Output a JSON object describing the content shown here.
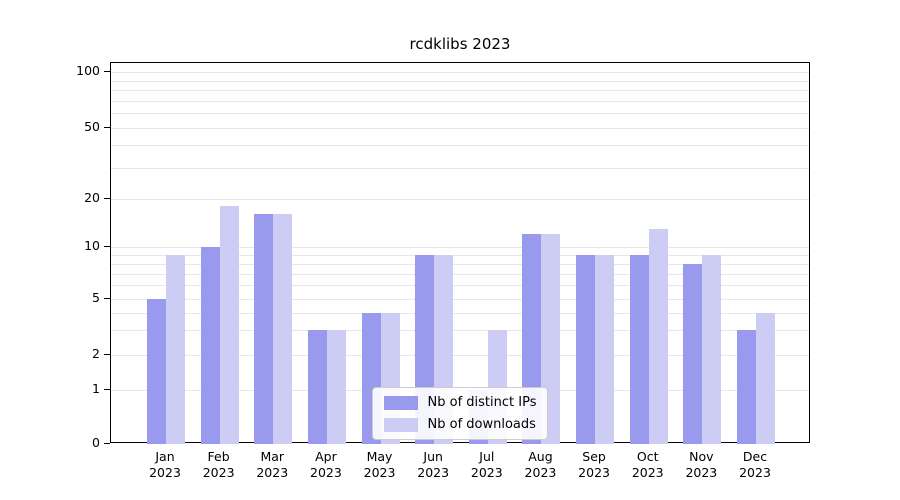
{
  "chart_data": {
    "type": "bar",
    "title": "rcdklibs 2023",
    "categories": [
      "Jan 2023",
      "Feb 2023",
      "Mar 2023",
      "Apr 2023",
      "May 2023",
      "Jun 2023",
      "Jul 2023",
      "Aug 2023",
      "Sep 2023",
      "Oct 2023",
      "Nov 2023",
      "Dec 2023"
    ],
    "series": [
      {
        "name": "Nb of distinct IPs",
        "color": "#9999ee",
        "values": [
          5,
          10,
          16,
          3,
          4,
          9,
          1,
          12,
          9,
          9,
          8,
          3
        ]
      },
      {
        "name": "Nb of downloads",
        "color": "#ccccf5",
        "values": [
          9,
          18,
          16,
          3,
          4,
          9,
          3,
          12,
          9,
          13,
          9,
          4
        ]
      }
    ],
    "y_ticks": [
      0,
      1,
      2,
      5,
      10,
      20,
      50,
      100
    ],
    "y_scale": "log",
    "ylim": [
      0,
      110
    ],
    "xlabel": "",
    "ylabel": "",
    "grid": "horizontal-minor-log",
    "legend_position": "lower center"
  }
}
